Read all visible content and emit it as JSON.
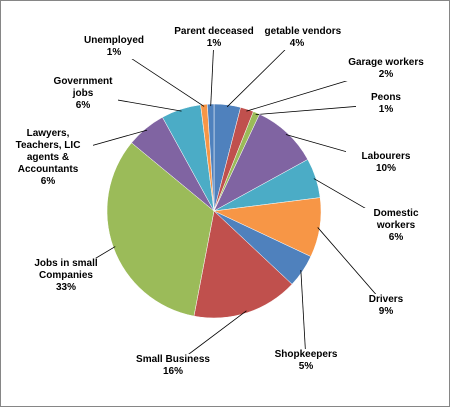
{
  "chart_data": {
    "type": "pie",
    "categories": [
      "Vegetable vendors",
      "Garage workers",
      "Peons",
      "Labourers",
      "Domestic workers",
      "Drivers",
      "Shopkeepers",
      "Small Business",
      "Jobs in small Companies",
      "Lawyers, Teachers, LIC agents & Accountants",
      "Government jobs",
      "Unemployed",
      "Parent deceased"
    ],
    "values": [
      4,
      2,
      1,
      10,
      6,
      9,
      5,
      16,
      33,
      6,
      6,
      1,
      1
    ],
    "value_labels": [
      "4%",
      "2%",
      "1%",
      "10%",
      "6%",
      "9%",
      "5%",
      "16%",
      "33%",
      "6%",
      "6%",
      "1%",
      "1%"
    ],
    "colors": [
      "#4f81bd",
      "#c0504d",
      "#9bbb59",
      "#8064a2",
      "#4bacc6",
      "#f79646",
      "#4f81bd",
      "#c0504d",
      "#9bbb59",
      "#8064a2",
      "#4bacc6",
      "#f79646",
      "#4f81bd"
    ]
  }
}
